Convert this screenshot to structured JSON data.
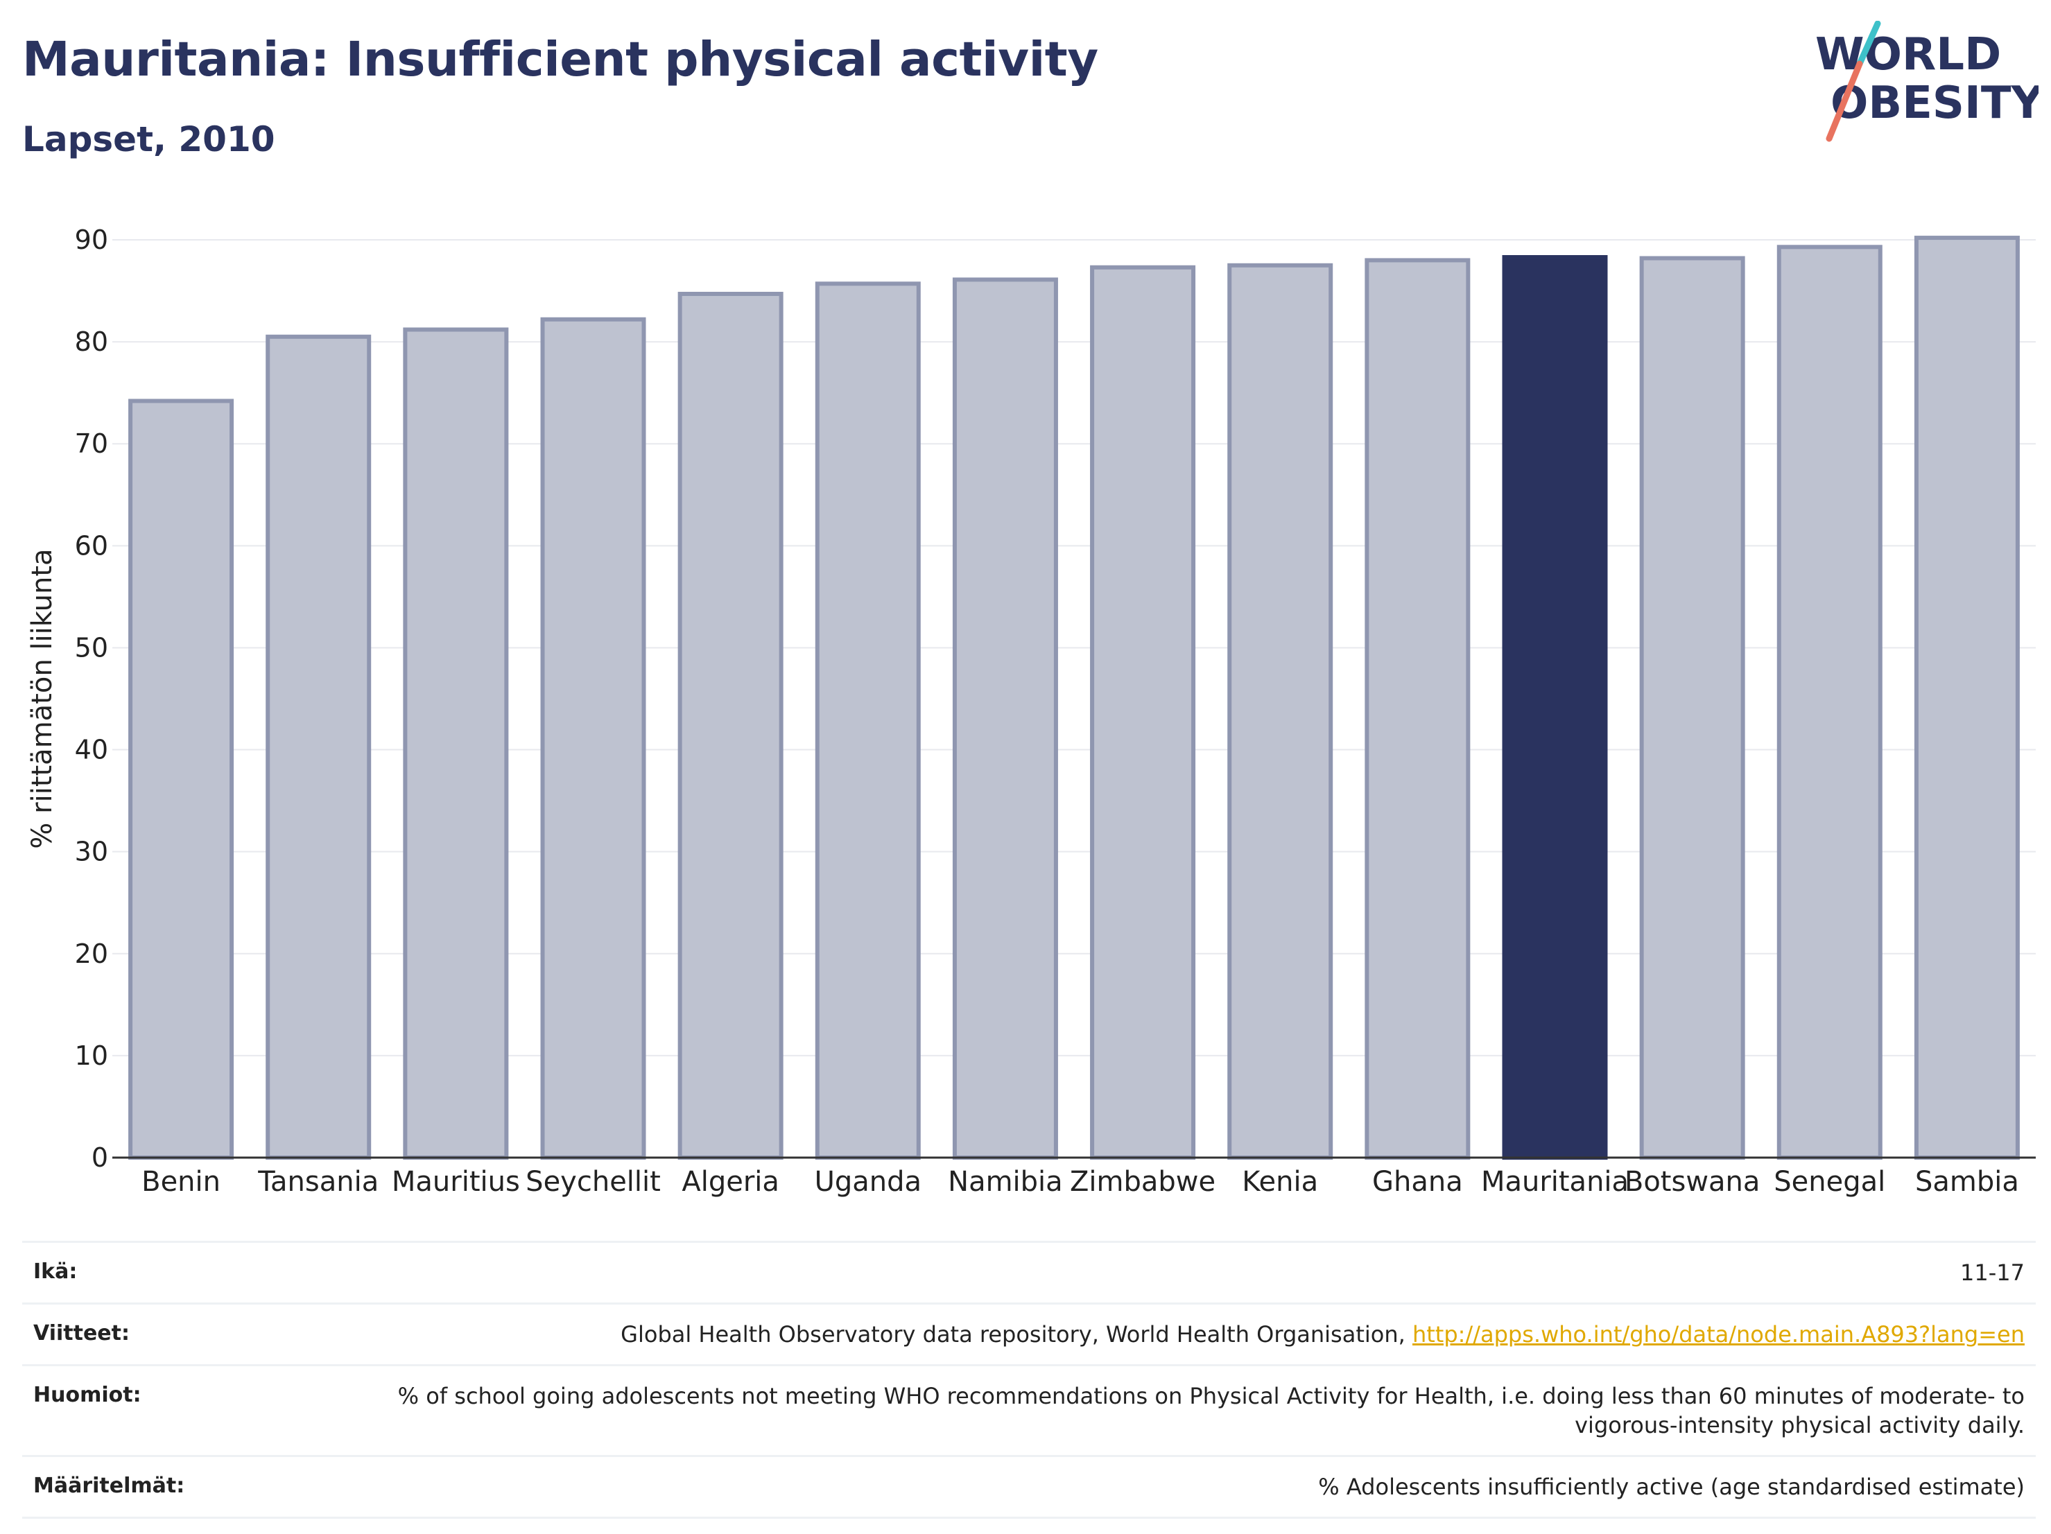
{
  "header": {
    "title": "Mauritania: Insufficient physical activity",
    "subtitle": "Lapset, 2010"
  },
  "logo": {
    "line1": "WORLD",
    "line2": "OBESITY",
    "slash_color_top": "#3ec1c9",
    "slash_color_bottom": "#e8735f"
  },
  "colors": {
    "highlight_bar": "#2a335f",
    "other_bar_fill": "#bec2d0",
    "other_bar_stroke": "#8f96b0",
    "link": "#e0a800"
  },
  "chart_data": {
    "type": "bar",
    "categories": [
      "Benin",
      "Tansania",
      "Mauritius",
      "Seychellit",
      "Algeria",
      "Uganda",
      "Namibia",
      "Zimbabwe",
      "Kenia",
      "Ghana",
      "Mauritania",
      "Botswana",
      "Senegal",
      "Sambia"
    ],
    "values": [
      74.2,
      80.5,
      81.2,
      82.2,
      84.7,
      85.7,
      86.1,
      87.3,
      87.5,
      88.0,
      88.3,
      88.2,
      89.3,
      90.2
    ],
    "highlight": "Mauritania",
    "ylabel": "% riittämätön liikunta",
    "xlabel": "",
    "ylim": [
      0,
      90
    ],
    "yticks": [
      0,
      10,
      20,
      30,
      40,
      50,
      60,
      70,
      80,
      90
    ],
    "grid": true
  },
  "info": {
    "age_label": "Ikä:",
    "age_value": "11-17",
    "refs_label": "Viitteet:",
    "refs_text": "Global Health Observatory data repository, World Health Organisation, ",
    "refs_link": "http://apps.who.int/gho/data/node.main.A893?lang=en",
    "notes_label": "Huomiot:",
    "notes_value": "% of school going adolescents not meeting WHO recommendations on Physical Activity for Health, i.e. doing less than 60 minutes of moderate- to vigorous-intensity physical activity daily.",
    "defs_label": "Määritelmät:",
    "defs_value": "% Adolescents insufficiently active (age standardised estimate)"
  }
}
